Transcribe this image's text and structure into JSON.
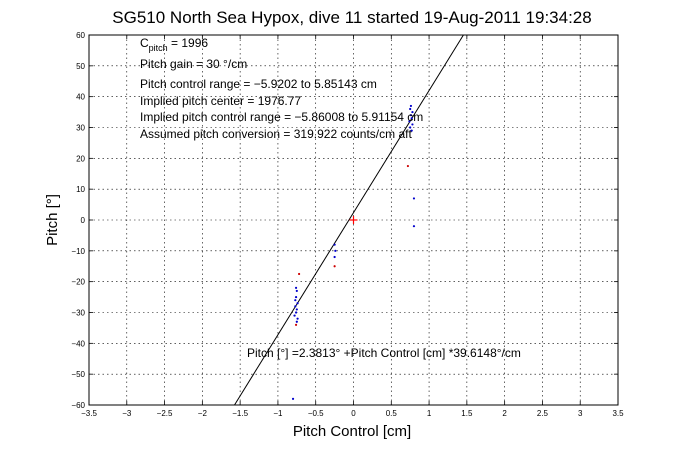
{
  "chart_data": {
    "type": "scatter",
    "title": "SG510 North Sea Hypox, dive 11 started 19-Aug-2011 19:34:28",
    "xlabel": "Pitch Control [cm]",
    "ylabel": "Pitch [°]",
    "xlim": [
      -3.5,
      3.5
    ],
    "ylim": [
      -60,
      60
    ],
    "xticks": [
      -3.5,
      -3,
      -2.5,
      -2,
      -1.5,
      -1,
      -0.5,
      0,
      0.5,
      1,
      1.5,
      2,
      2.5,
      3,
      3.5
    ],
    "yticks": [
      -60,
      -50,
      -40,
      -30,
      -20,
      -10,
      0,
      10,
      20,
      30,
      40,
      50,
      60
    ],
    "xtick_labels": [
      "−3.5",
      "−3",
      "−2.5",
      "−2",
      "−1.5",
      "−1",
      "−0.5",
      "0",
      "0.5",
      "1",
      "1.5",
      "2",
      "2.5",
      "3",
      "3.5"
    ],
    "ytick_labels": [
      "−60",
      "−50",
      "−40",
      "−30",
      "−20",
      "−10",
      "0",
      "10",
      "20",
      "30",
      "40",
      "50",
      "60"
    ],
    "grid": true,
    "annotations": {
      "line1_main": "C",
      "line1_sub": "pitch",
      "line1_rest": " = 1996",
      "line2": "Pitch gain = 30 °/cm",
      "line3": "Pitch control range = −5.9202 to 5.85143 cm",
      "line4": "Implied pitch center = 1976.77",
      "line5": "Implied pitch control range = −5.86008 to 5.91154 cm",
      "line6": "Assumed pitch conversion = 319.922 counts/cm aft",
      "fit_equation": "Pitch [°] =2.3813° +Pitch Control [cm] *39.6148°/cm"
    },
    "fit_line": {
      "intercept": 2.3813,
      "slope": 39.6148,
      "color": "#000000"
    },
    "center_marker": {
      "x": 0,
      "y": 0,
      "color": "#ff0000"
    },
    "series": [
      {
        "color": "#0000cc",
        "points": [
          [
            0.75,
            36
          ],
          [
            0.76,
            34
          ],
          [
            0.77,
            33
          ],
          [
            0.74,
            32
          ],
          [
            0.78,
            31
          ],
          [
            0.75,
            30
          ],
          [
            0.77,
            29
          ],
          [
            0.76,
            37
          ],
          [
            0.78,
            35
          ],
          [
            0.8,
            7
          ],
          [
            0.8,
            -2
          ],
          [
            -0.75,
            -23
          ],
          [
            -0.76,
            -25
          ],
          [
            -0.74,
            -27
          ],
          [
            -0.77,
            -28
          ],
          [
            -0.75,
            -29
          ],
          [
            -0.76,
            -30
          ],
          [
            -0.78,
            -31
          ],
          [
            -0.74,
            -32
          ],
          [
            -0.75,
            -33
          ],
          [
            -0.77,
            -26
          ],
          [
            -0.76,
            -22
          ],
          [
            -0.8,
            -58
          ],
          [
            -0.25,
            -8
          ],
          [
            -0.24,
            -10
          ],
          [
            -0.25,
            -12
          ]
        ]
      },
      {
        "color": "#cc0000",
        "points": [
          [
            0.72,
            17.5
          ],
          [
            -0.72,
            -17.5
          ],
          [
            -0.76,
            -34
          ],
          [
            -0.25,
            -15
          ]
        ]
      }
    ]
  }
}
